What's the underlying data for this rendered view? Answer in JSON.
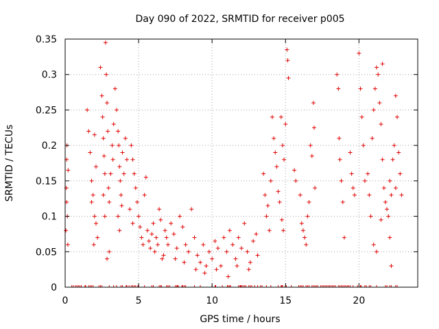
{
  "chart_data": {
    "type": "scatter",
    "title": "Day 090 of 2022, SRMTID for receiver p005",
    "xlabel": "GPS time / hours",
    "ylabel": "SRMTID / TECUs",
    "xlim": [
      0,
      24
    ],
    "ylim": [
      0,
      0.35
    ],
    "x_ticks": [
      0,
      5,
      10,
      15,
      20
    ],
    "x_tick_labels": [
      "0",
      "5",
      "10",
      "15",
      "20"
    ],
    "y_ticks": [
      0,
      0.05,
      0.1,
      0.15,
      0.2,
      0.25,
      0.3,
      0.35
    ],
    "y_tick_labels": [
      "0",
      "0.05",
      "0.1",
      "0.15",
      "0.2",
      "0.25",
      "0.3",
      "0.35"
    ],
    "grid": true,
    "marker": "+",
    "color": "#e00000",
    "series": [
      {
        "name": "SRMTID",
        "points": [
          [
            0.05,
            0.08
          ],
          [
            0.08,
            0.14
          ],
          [
            0.1,
            0.18
          ],
          [
            0.12,
            0.2
          ],
          [
            0.15,
            0.1
          ],
          [
            0.18,
            0.06
          ],
          [
            0.2,
            0.165
          ],
          [
            0.1,
            0.12
          ],
          [
            1.5,
            0.25
          ],
          [
            1.6,
            0.22
          ],
          [
            1.7,
            0.19
          ],
          [
            1.8,
            0.15
          ],
          [
            1.9,
            0.13
          ],
          [
            2.0,
            0.1
          ],
          [
            2.1,
            0.09
          ],
          [
            2.2,
            0.07
          ],
          [
            2.1,
            0.17
          ],
          [
            2.0,
            0.215
          ],
          [
            1.8,
            0.12
          ],
          [
            1.95,
            0.06
          ],
          [
            2.4,
            0.31
          ],
          [
            2.5,
            0.27
          ],
          [
            2.55,
            0.24
          ],
          [
            2.6,
            0.21
          ],
          [
            2.65,
            0.185
          ],
          [
            2.7,
            0.16
          ],
          [
            2.75,
            0.345
          ],
          [
            2.8,
            0.3
          ],
          [
            2.85,
            0.26
          ],
          [
            2.9,
            0.22
          ],
          [
            2.95,
            0.14
          ],
          [
            3.0,
            0.12
          ],
          [
            2.85,
            0.04
          ],
          [
            3.0,
            0.05
          ],
          [
            2.6,
            0.13
          ],
          [
            2.7,
            0.1
          ],
          [
            3.1,
            0.16
          ],
          [
            3.2,
            0.2
          ],
          [
            3.25,
            0.18
          ],
          [
            3.3,
            0.23
          ],
          [
            3.4,
            0.28
          ],
          [
            3.5,
            0.25
          ],
          [
            3.6,
            0.22
          ],
          [
            3.65,
            0.2
          ],
          [
            3.7,
            0.17
          ],
          [
            3.75,
            0.15
          ],
          [
            3.8,
            0.13
          ],
          [
            3.85,
            0.115
          ],
          [
            3.9,
            0.19
          ],
          [
            4.0,
            0.16
          ],
          [
            4.1,
            0.21
          ],
          [
            4.2,
            0.18
          ],
          [
            3.6,
            0.1
          ],
          [
            3.7,
            0.08
          ],
          [
            4.5,
            0.2
          ],
          [
            4.6,
            0.18
          ],
          [
            4.7,
            0.16
          ],
          [
            4.8,
            0.14
          ],
          [
            4.9,
            0.12
          ],
          [
            5.0,
            0.1
          ],
          [
            5.1,
            0.085
          ],
          [
            5.2,
            0.07
          ],
          [
            5.3,
            0.06
          ],
          [
            4.4,
            0.11
          ],
          [
            4.6,
            0.09
          ],
          [
            5.4,
            0.13
          ],
          [
            5.5,
            0.155
          ],
          [
            5.6,
            0.08
          ],
          [
            5.7,
            0.065
          ],
          [
            5.8,
            0.055
          ],
          [
            5.9,
            0.075
          ],
          [
            6.0,
            0.09
          ],
          [
            6.1,
            0.05
          ],
          [
            6.2,
            0.07
          ],
          [
            6.3,
            0.06
          ],
          [
            6.4,
            0.11
          ],
          [
            6.5,
            0.095
          ],
          [
            6.6,
            0.04
          ],
          [
            6.7,
            0.045
          ],
          [
            6.8,
            0.08
          ],
          [
            6.9,
            0.07
          ],
          [
            7.0,
            0.06
          ],
          [
            7.2,
            0.09
          ],
          [
            7.4,
            0.075
          ],
          [
            7.6,
            0.055
          ],
          [
            7.8,
            0.1
          ],
          [
            8.0,
            0.085
          ],
          [
            8.2,
            0.06
          ],
          [
            8.4,
            0.05
          ],
          [
            8.6,
            0.11
          ],
          [
            8.8,
            0.07
          ],
          [
            9.0,
            0.045
          ],
          [
            9.2,
            0.035
          ],
          [
            9.4,
            0.06
          ],
          [
            9.6,
            0.03
          ],
          [
            9.8,
            0.05
          ],
          [
            10.0,
            0.04
          ],
          [
            10.2,
            0.065
          ],
          [
            10.4,
            0.055
          ],
          [
            10.6,
            0.03
          ],
          [
            10.8,
            0.07
          ],
          [
            11.0,
            0.05
          ],
          [
            11.2,
            0.08
          ],
          [
            11.4,
            0.06
          ],
          [
            11.6,
            0.04
          ],
          [
            11.8,
            0.07
          ],
          [
            12.0,
            0.055
          ],
          [
            12.2,
            0.09
          ],
          [
            12.4,
            0.05
          ],
          [
            12.6,
            0.035
          ],
          [
            12.8,
            0.065
          ],
          [
            13.0,
            0.075
          ],
          [
            7.5,
            0.04
          ],
          [
            8.1,
            0.035
          ],
          [
            8.9,
            0.025
          ],
          [
            9.5,
            0.02
          ],
          [
            10.3,
            0.025
          ],
          [
            11.1,
            0.015
          ],
          [
            11.7,
            0.03
          ],
          [
            12.5,
            0.025
          ],
          [
            13.1,
            0.045
          ],
          [
            13.5,
            0.16
          ],
          [
            13.6,
            0.13
          ],
          [
            13.7,
            0.1
          ],
          [
            13.8,
            0.115
          ],
          [
            13.9,
            0.08
          ],
          [
            14.0,
            0.15
          ],
          [
            14.1,
            0.24
          ],
          [
            14.2,
            0.21
          ],
          [
            14.3,
            0.19
          ],
          [
            14.4,
            0.17
          ],
          [
            14.5,
            0.135
          ],
          [
            14.6,
            0.12
          ],
          [
            14.7,
            0.24
          ],
          [
            14.8,
            0.2
          ],
          [
            14.9,
            0.18
          ],
          [
            14.75,
            0.095
          ],
          [
            14.85,
            0.08
          ],
          [
            15.1,
            0.335
          ],
          [
            15.15,
            0.32
          ],
          [
            15.2,
            0.295
          ],
          [
            15.0,
            0.23
          ],
          [
            15.6,
            0.165
          ],
          [
            15.7,
            0.15
          ],
          [
            16.0,
            0.13
          ],
          [
            16.1,
            0.09
          ],
          [
            16.2,
            0.08
          ],
          [
            16.3,
            0.07
          ],
          [
            16.4,
            0.06
          ],
          [
            16.5,
            0.1
          ],
          [
            16.6,
            0.12
          ],
          [
            16.7,
            0.2
          ],
          [
            16.8,
            0.185
          ],
          [
            16.9,
            0.26
          ],
          [
            17.0,
            0.14
          ],
          [
            16.95,
            0.225
          ],
          [
            18.5,
            0.3
          ],
          [
            18.6,
            0.28
          ],
          [
            18.7,
            0.18
          ],
          [
            18.8,
            0.15
          ],
          [
            18.9,
            0.12
          ],
          [
            19.0,
            0.07
          ],
          [
            18.65,
            0.21
          ],
          [
            19.4,
            0.19
          ],
          [
            19.5,
            0.16
          ],
          [
            19.6,
            0.14
          ],
          [
            19.7,
            0.13
          ],
          [
            20.0,
            0.33
          ],
          [
            20.1,
            0.28
          ],
          [
            20.2,
            0.24
          ],
          [
            20.3,
            0.2
          ],
          [
            20.4,
            0.15
          ],
          [
            20.6,
            0.16
          ],
          [
            20.7,
            0.13
          ],
          [
            20.8,
            0.1
          ],
          [
            20.9,
            0.21
          ],
          [
            21.0,
            0.25
          ],
          [
            21.1,
            0.28
          ],
          [
            21.2,
            0.31
          ],
          [
            21.3,
            0.3
          ],
          [
            21.4,
            0.26
          ],
          [
            21.5,
            0.23
          ],
          [
            21.6,
            0.18
          ],
          [
            21.7,
            0.14
          ],
          [
            21.8,
            0.12
          ],
          [
            21.9,
            0.11
          ],
          [
            21.0,
            0.06
          ],
          [
            21.2,
            0.05
          ],
          [
            21.5,
            0.095
          ],
          [
            21.6,
            0.315
          ],
          [
            22.0,
            0.1
          ],
          [
            22.1,
            0.15
          ],
          [
            22.2,
            0.13
          ],
          [
            22.3,
            0.18
          ],
          [
            22.4,
            0.2
          ],
          [
            22.5,
            0.14
          ],
          [
            22.1,
            0.07
          ],
          [
            22.2,
            0.03
          ],
          [
            22.5,
            0.27
          ],
          [
            22.6,
            0.24
          ],
          [
            22.7,
            0.19
          ],
          [
            22.8,
            0.16
          ],
          [
            22.9,
            0.13
          ]
        ]
      }
    ],
    "zero_markers_x": [
      0.45,
      0.55,
      0.7,
      0.8,
      0.9,
      1.0,
      1.1,
      1.35,
      1.4,
      1.6,
      1.7,
      1.8,
      1.9,
      2.3,
      2.4,
      2.5,
      3.0,
      3.3,
      3.5,
      3.8,
      3.9,
      4.15,
      4.2,
      4.35,
      4.5,
      4.6,
      4.7,
      4.8,
      4.95,
      5.0,
      5.4,
      5.9,
      6.0,
      6.4,
      6.5,
      6.55,
      6.9,
      7.0,
      7.1,
      7.5,
      7.6,
      7.65,
      7.7,
      7.95,
      8.0,
      8.1,
      8.2,
      8.8,
      9.2,
      10.0,
      10.2,
      10.25,
      10.7,
      11.05,
      11.1,
      11.2,
      11.25,
      11.8,
      11.9,
      11.95,
      12.0,
      12.1,
      12.2,
      12.3,
      12.5,
      12.6,
      12.7,
      12.9,
      13.1,
      13.3,
      13.4,
      13.7,
      14.0,
      14.5,
      14.7,
      14.75,
      14.8,
      15.0,
      15.05,
      15.4,
      15.9,
      16.0,
      16.1,
      16.2,
      16.4,
      16.5,
      16.6,
      16.8,
      16.9,
      17.0,
      17.1,
      17.2,
      17.4,
      17.5,
      17.6,
      17.7,
      17.8,
      17.9,
      18.0,
      18.1,
      18.2,
      18.3,
      18.4,
      18.6,
      18.7,
      18.8,
      18.9,
      19.0,
      19.1,
      19.2,
      19.3,
      19.4,
      19.6,
      19.9,
      20.1,
      20.15,
      20.4,
      20.5,
      20.7,
      20.8,
      21.2,
      21.8,
      21.9,
      22.1,
      22.2,
      22.5,
      22.6
    ]
  }
}
